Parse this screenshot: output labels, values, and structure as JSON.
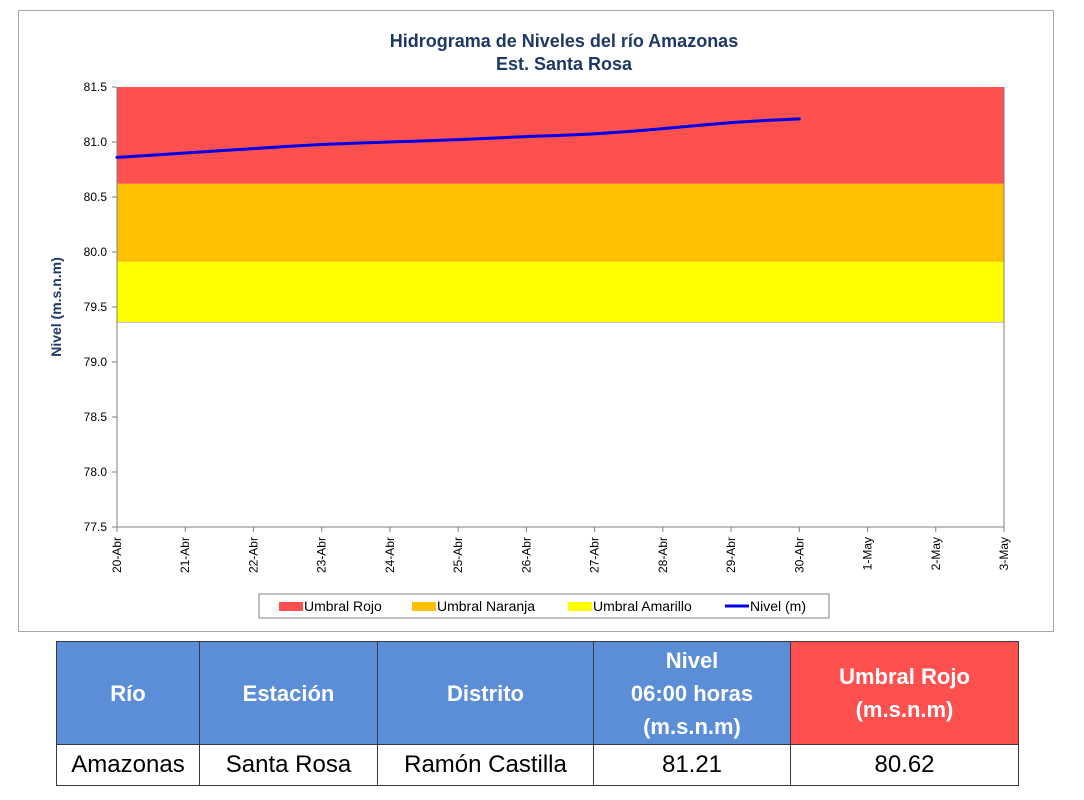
{
  "chart_data": {
    "type": "line",
    "title": "Hidrograma de Niveles del río Amazonas",
    "subtitle": "Est. Santa Rosa",
    "ylabel": "Nivel (m.s.n.m)",
    "xlabel": "",
    "ylim": [
      77.5,
      81.5
    ],
    "yticks": [
      "77.5",
      "78.0",
      "78.5",
      "79.0",
      "79.5",
      "80.0",
      "80.5",
      "81.0",
      "81.5"
    ],
    "categories": [
      "20-Abr",
      "21-Abr",
      "22-Abr",
      "23-Abr",
      "24-Abr",
      "25-Abr",
      "26-Abr",
      "27-Abr",
      "28-Abr",
      "29-Abr",
      "30-Abr",
      "1-May",
      "2-May",
      "3-May"
    ],
    "bands": [
      {
        "name": "Umbral Rojo",
        "from": 80.62,
        "to": 81.5,
        "color": "#ff5050"
      },
      {
        "name": "Umbral Naranja",
        "from": 79.91,
        "to": 80.62,
        "color": "#ffc000"
      },
      {
        "name": "Umbral Amarillo",
        "from": 79.36,
        "to": 79.91,
        "color": "#ffff00"
      }
    ],
    "series": [
      {
        "name": "Nivel (m)",
        "color": "#0000e6",
        "x": [
          "20-Abr",
          "21-Abr",
          "22-Abr",
          "23-Abr",
          "24-Abr",
          "25-Abr",
          "26-Abr",
          "27-Abr",
          "28-Abr",
          "29-Abr",
          "30-Abr"
        ],
        "values": [
          80.86,
          80.9,
          80.94,
          80.98,
          81.0,
          81.02,
          81.05,
          81.07,
          81.12,
          81.18,
          81.21
        ]
      }
    ],
    "legend": [
      "Umbral Rojo",
      "Umbral Naranja",
      "Umbral Amarillo",
      "Nivel (m)"
    ],
    "legend_position": "bottom",
    "grid": false
  },
  "table": {
    "headers": {
      "rio": "Río",
      "estacion": "Estación",
      "distrito": "Distrito",
      "nivel_line1": "Nivel",
      "nivel_line2": "06:00 horas",
      "nivel_line3": "(m.s.n.m)",
      "umbral_line1": "Umbral Rojo",
      "umbral_line2": "(m.s.n.m)"
    },
    "row": {
      "rio": "Amazonas",
      "estacion": "Santa Rosa",
      "distrito": "Ramón Castilla",
      "nivel": "81.21",
      "umbral": "80.62"
    },
    "colors": {
      "header_blue": "#5b8ed6",
      "header_red": "#ff5050"
    }
  }
}
